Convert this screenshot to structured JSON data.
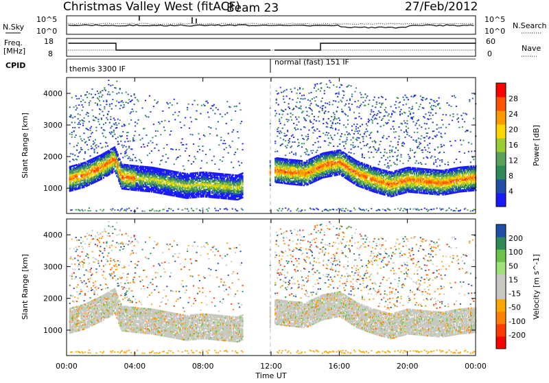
{
  "header": {
    "station": "Christmas Valley West (fitACF)",
    "beam": "Beam 23",
    "date": "27/Feb/2012"
  },
  "top_panels": {
    "nsky_label": "N.Sky",
    "nsky_ticks": [
      "10^5",
      "10^0"
    ],
    "nsearch_label": "N.Search",
    "nsearch_ticks": [
      "10^5",
      "10^0"
    ],
    "freq_label_1": "Freq.",
    "freq_label_2": "[MHz]",
    "freq_ticks": [
      "18",
      "8"
    ],
    "nave_label": "Nave",
    "nave_ticks": [
      "60",
      "0"
    ],
    "cpid_label": "CPID",
    "cpid_segments": [
      "themis 3300 IF",
      "normal (fast) 151 IF"
    ]
  },
  "colors": {
    "background": "#ffffff",
    "power_scale": [
      "#1a1aff",
      "#1f4fa8",
      "#2e8b57",
      "#5aa05a",
      "#9acd32",
      "#ffd700",
      "#ff9900",
      "#ff5500",
      "#ff0000"
    ],
    "velocity_scale": [
      "#1f4fa8",
      "#2e8b57",
      "#6cc24a",
      "#9ee07a",
      "#c8c8c0",
      "#c8c8c0",
      "#ffa500",
      "#ff7f00",
      "#ff3b00",
      "#ff0000"
    ]
  },
  "chart_data": [
    {
      "type": "heatmap",
      "name": "power",
      "xlabel": "",
      "ylabel": "Slant Range [km]",
      "xlim_hours": [
        0,
        24
      ],
      "ylim": [
        200,
        4500
      ],
      "yticks": [
        1000,
        2000,
        3000,
        4000
      ],
      "colorbar_label": "Power [dB]",
      "colorbar_ticks": [
        4,
        8,
        12,
        16,
        20,
        24,
        28
      ],
      "colorbar_range": [
        0,
        32
      ],
      "data_gap_hours": [
        11.95,
        12.2
      ],
      "main_band_center_km": [
        [
          0.0,
          1250
        ],
        [
          1.0,
          1400
        ],
        [
          2.0,
          1650
        ],
        [
          2.8,
          1900
        ],
        [
          3.2,
          1350
        ],
        [
          4.0,
          1300
        ],
        [
          5.0,
          1250
        ],
        [
          6.0,
          1150
        ],
        [
          7.0,
          1050
        ],
        [
          8.0,
          1100
        ],
        [
          9.0,
          1050
        ],
        [
          10.0,
          1000
        ],
        [
          12.3,
          1550
        ],
        [
          13.0,
          1500
        ],
        [
          14.0,
          1450
        ],
        [
          15.0,
          1700
        ],
        [
          16.0,
          1800
        ],
        [
          17.0,
          1450
        ],
        [
          18.0,
          1250
        ],
        [
          19.0,
          1100
        ],
        [
          20.0,
          1250
        ],
        [
          21.0,
          1200
        ],
        [
          22.0,
          1150
        ],
        [
          23.0,
          1250
        ],
        [
          24.0,
          1300
        ]
      ]
    },
    {
      "type": "heatmap",
      "name": "velocity",
      "xlabel": "Time UT",
      "ylabel": "Slant Range [km]",
      "xlim_hours": [
        0,
        24
      ],
      "ylim": [
        200,
        4500
      ],
      "yticks": [
        1000,
        2000,
        3000,
        4000
      ],
      "xticks": [
        "00:00",
        "04:00",
        "08:00",
        "12:00",
        "16:00",
        "20:00",
        "00:00"
      ],
      "colorbar_label": "Velocity [m s^-1]",
      "colorbar_ticks": [
        200,
        100,
        50,
        15,
        -15,
        -50,
        -100,
        -200
      ],
      "data_gap_hours": [
        11.95,
        12.2
      ]
    }
  ]
}
